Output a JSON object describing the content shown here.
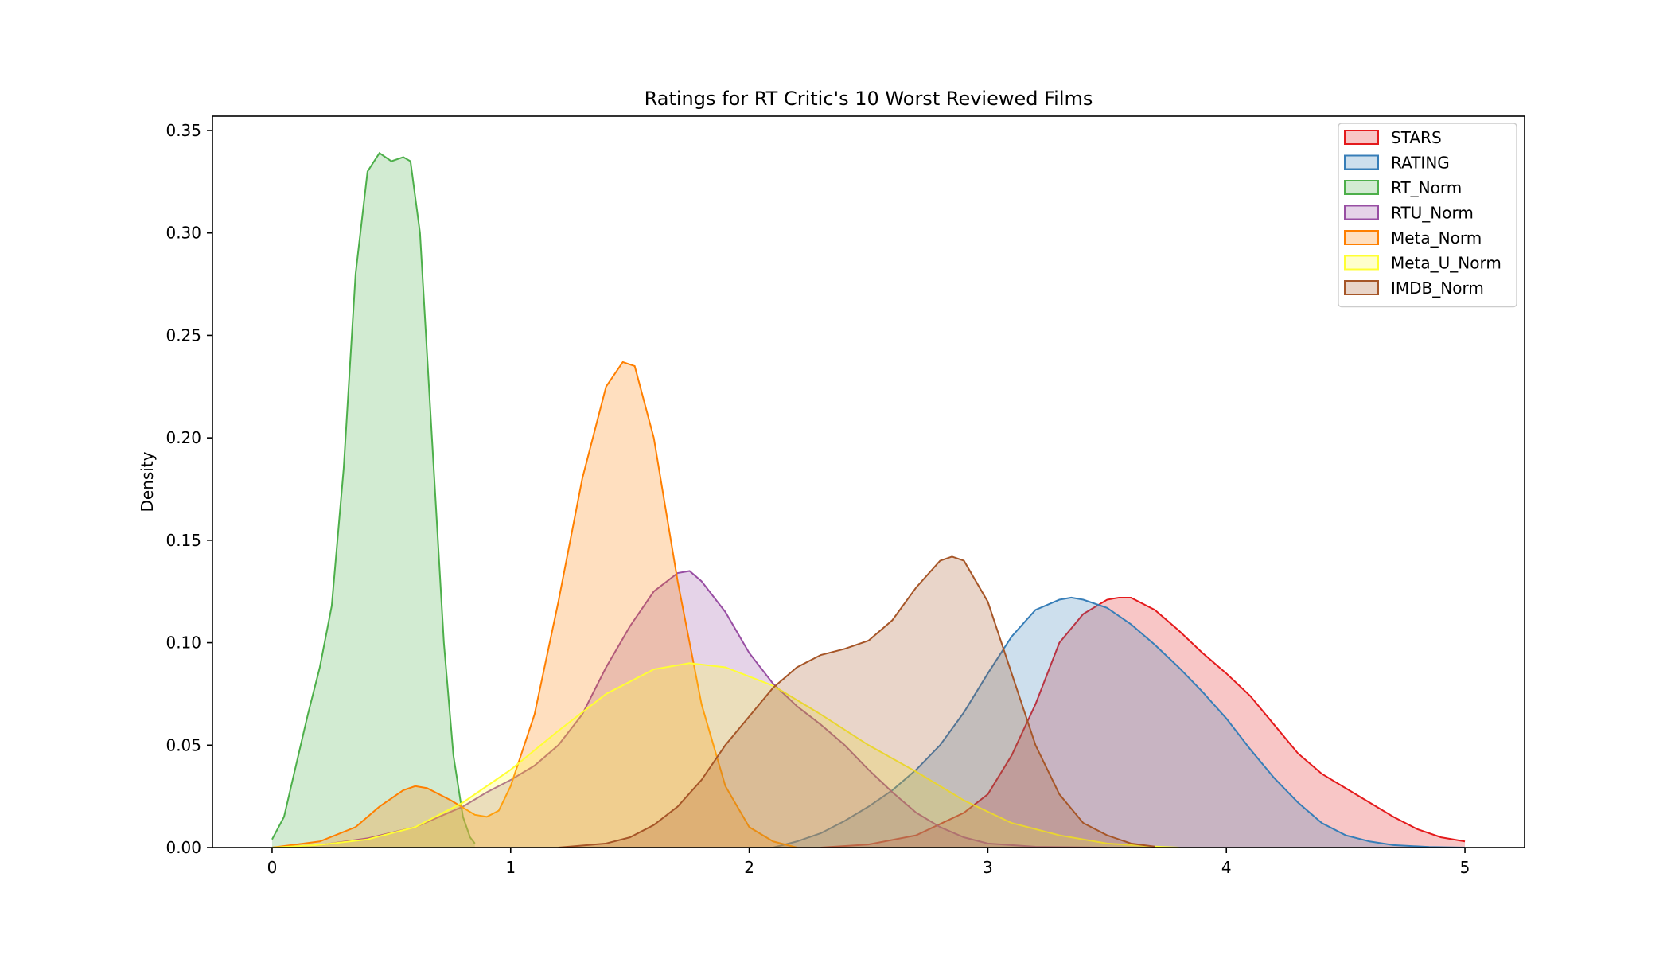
{
  "chart_data": {
    "type": "area",
    "title": "Ratings for RT Critic's 10 Worst Reviewed Films",
    "xlabel": "",
    "ylabel": "Density",
    "xlim": [
      -0.25,
      5.25
    ],
    "ylim": [
      0,
      0.357
    ],
    "xticks": [
      0,
      1,
      2,
      3,
      4,
      5
    ],
    "xtick_labels": [
      "0",
      "1",
      "2",
      "3",
      "4",
      "5"
    ],
    "yticks": [
      0.0,
      0.05,
      0.1,
      0.15,
      0.2,
      0.25,
      0.3,
      0.35
    ],
    "ytick_labels": [
      "0.00",
      "0.05",
      "0.10",
      "0.15",
      "0.20",
      "0.25",
      "0.30",
      "0.35"
    ],
    "grid": false,
    "legend_position": "top-right",
    "series": [
      {
        "name": "STARS",
        "color": "#e41a1c",
        "points": [
          [
            2.3,
            0.0
          ],
          [
            2.5,
            0.0015
          ],
          [
            2.7,
            0.006
          ],
          [
            2.9,
            0.017
          ],
          [
            3.0,
            0.026
          ],
          [
            3.1,
            0.045
          ],
          [
            3.2,
            0.07
          ],
          [
            3.3,
            0.1
          ],
          [
            3.4,
            0.114
          ],
          [
            3.5,
            0.121
          ],
          [
            3.55,
            0.122
          ],
          [
            3.6,
            0.122
          ],
          [
            3.7,
            0.116
          ],
          [
            3.8,
            0.106
          ],
          [
            3.9,
            0.095
          ],
          [
            4.0,
            0.085
          ],
          [
            4.1,
            0.074
          ],
          [
            4.2,
            0.06
          ],
          [
            4.3,
            0.046
          ],
          [
            4.4,
            0.036
          ],
          [
            4.5,
            0.029
          ],
          [
            4.6,
            0.022
          ],
          [
            4.7,
            0.015
          ],
          [
            4.8,
            0.009
          ],
          [
            4.9,
            0.005
          ],
          [
            5.0,
            0.003
          ]
        ]
      },
      {
        "name": "RATING",
        "color": "#377eb8",
        "points": [
          [
            2.0,
            0.0
          ],
          [
            2.1,
            0.0
          ],
          [
            2.2,
            0.003
          ],
          [
            2.3,
            0.007
          ],
          [
            2.4,
            0.013
          ],
          [
            2.5,
            0.02
          ],
          [
            2.6,
            0.028
          ],
          [
            2.7,
            0.038
          ],
          [
            2.8,
            0.05
          ],
          [
            2.9,
            0.066
          ],
          [
            3.0,
            0.085
          ],
          [
            3.1,
            0.103
          ],
          [
            3.2,
            0.116
          ],
          [
            3.3,
            0.121
          ],
          [
            3.35,
            0.122
          ],
          [
            3.4,
            0.121
          ],
          [
            3.5,
            0.117
          ],
          [
            3.6,
            0.109
          ],
          [
            3.7,
            0.099
          ],
          [
            3.8,
            0.088
          ],
          [
            3.9,
            0.076
          ],
          [
            4.0,
            0.063
          ],
          [
            4.1,
            0.048
          ],
          [
            4.2,
            0.034
          ],
          [
            4.3,
            0.022
          ],
          [
            4.4,
            0.012
          ],
          [
            4.5,
            0.006
          ],
          [
            4.6,
            0.003
          ],
          [
            4.7,
            0.0012
          ],
          [
            4.85,
            0.0003
          ],
          [
            5.0,
            0.0
          ]
        ]
      },
      {
        "name": "RT_Norm",
        "color": "#4daf4a",
        "points": [
          [
            0.0,
            0.004
          ],
          [
            0.05,
            0.015
          ],
          [
            0.1,
            0.04
          ],
          [
            0.15,
            0.065
          ],
          [
            0.2,
            0.088
          ],
          [
            0.25,
            0.118
          ],
          [
            0.3,
            0.185
          ],
          [
            0.35,
            0.28
          ],
          [
            0.4,
            0.33
          ],
          [
            0.45,
            0.339
          ],
          [
            0.5,
            0.335
          ],
          [
            0.55,
            0.337
          ],
          [
            0.58,
            0.335
          ],
          [
            0.62,
            0.3
          ],
          [
            0.67,
            0.2
          ],
          [
            0.72,
            0.1
          ],
          [
            0.76,
            0.045
          ],
          [
            0.8,
            0.015
          ],
          [
            0.83,
            0.005
          ],
          [
            0.85,
            0.002
          ]
        ]
      },
      {
        "name": "RTU_Norm",
        "color": "#984ea3",
        "points": [
          [
            0.0,
            0.0
          ],
          [
            0.2,
            0.0012
          ],
          [
            0.4,
            0.0045
          ],
          [
            0.6,
            0.01
          ],
          [
            0.8,
            0.02
          ],
          [
            0.9,
            0.027
          ],
          [
            1.0,
            0.033
          ],
          [
            1.1,
            0.04
          ],
          [
            1.2,
            0.05
          ],
          [
            1.3,
            0.065
          ],
          [
            1.4,
            0.088
          ],
          [
            1.5,
            0.108
          ],
          [
            1.6,
            0.125
          ],
          [
            1.7,
            0.134
          ],
          [
            1.75,
            0.135
          ],
          [
            1.8,
            0.13
          ],
          [
            1.9,
            0.115
          ],
          [
            2.0,
            0.095
          ],
          [
            2.1,
            0.08
          ],
          [
            2.2,
            0.069
          ],
          [
            2.3,
            0.06
          ],
          [
            2.4,
            0.05
          ],
          [
            2.5,
            0.038
          ],
          [
            2.6,
            0.027
          ],
          [
            2.7,
            0.017
          ],
          [
            2.8,
            0.01
          ],
          [
            2.9,
            0.005
          ],
          [
            3.0,
            0.002
          ],
          [
            3.2,
            0.0004
          ],
          [
            3.5,
            0.0
          ]
        ]
      },
      {
        "name": "Meta_Norm",
        "color": "#ff7f00",
        "points": [
          [
            0.0,
            0.0
          ],
          [
            0.2,
            0.003
          ],
          [
            0.35,
            0.01
          ],
          [
            0.45,
            0.02
          ],
          [
            0.55,
            0.028
          ],
          [
            0.6,
            0.03
          ],
          [
            0.65,
            0.029
          ],
          [
            0.75,
            0.023
          ],
          [
            0.85,
            0.016
          ],
          [
            0.9,
            0.015
          ],
          [
            0.95,
            0.018
          ],
          [
            1.0,
            0.03
          ],
          [
            1.1,
            0.065
          ],
          [
            1.2,
            0.12
          ],
          [
            1.3,
            0.18
          ],
          [
            1.4,
            0.225
          ],
          [
            1.47,
            0.237
          ],
          [
            1.52,
            0.235
          ],
          [
            1.6,
            0.2
          ],
          [
            1.7,
            0.13
          ],
          [
            1.8,
            0.07
          ],
          [
            1.9,
            0.03
          ],
          [
            2.0,
            0.01
          ],
          [
            2.1,
            0.003
          ],
          [
            2.2,
            0.0
          ]
        ]
      },
      {
        "name": "Meta_U_Norm",
        "color": "#ffff33",
        "points": [
          [
            0.0,
            0.0
          ],
          [
            0.2,
            0.0013
          ],
          [
            0.4,
            0.004
          ],
          [
            0.6,
            0.01
          ],
          [
            0.8,
            0.022
          ],
          [
            1.0,
            0.038
          ],
          [
            1.2,
            0.057
          ],
          [
            1.4,
            0.075
          ],
          [
            1.6,
            0.087
          ],
          [
            1.75,
            0.09
          ],
          [
            1.9,
            0.088
          ],
          [
            2.1,
            0.079
          ],
          [
            2.3,
            0.065
          ],
          [
            2.5,
            0.05
          ],
          [
            2.7,
            0.037
          ],
          [
            2.9,
            0.023
          ],
          [
            3.1,
            0.012
          ],
          [
            3.3,
            0.006
          ],
          [
            3.5,
            0.002
          ],
          [
            3.7,
            0.0005
          ],
          [
            3.8,
            0.0
          ]
        ]
      },
      {
        "name": "IMDB_Norm",
        "color": "#a65628",
        "points": [
          [
            1.2,
            0.0
          ],
          [
            1.4,
            0.002
          ],
          [
            1.5,
            0.005
          ],
          [
            1.6,
            0.011
          ],
          [
            1.7,
            0.02
          ],
          [
            1.8,
            0.033
          ],
          [
            1.9,
            0.05
          ],
          [
            2.0,
            0.064
          ],
          [
            2.1,
            0.078
          ],
          [
            2.2,
            0.088
          ],
          [
            2.3,
            0.094
          ],
          [
            2.4,
            0.097
          ],
          [
            2.5,
            0.101
          ],
          [
            2.6,
            0.111
          ],
          [
            2.7,
            0.127
          ],
          [
            2.8,
            0.14
          ],
          [
            2.85,
            0.142
          ],
          [
            2.9,
            0.14
          ],
          [
            3.0,
            0.12
          ],
          [
            3.1,
            0.085
          ],
          [
            3.2,
            0.05
          ],
          [
            3.3,
            0.026
          ],
          [
            3.4,
            0.012
          ],
          [
            3.5,
            0.006
          ],
          [
            3.6,
            0.002
          ],
          [
            3.7,
            0.0005
          ]
        ]
      }
    ]
  }
}
